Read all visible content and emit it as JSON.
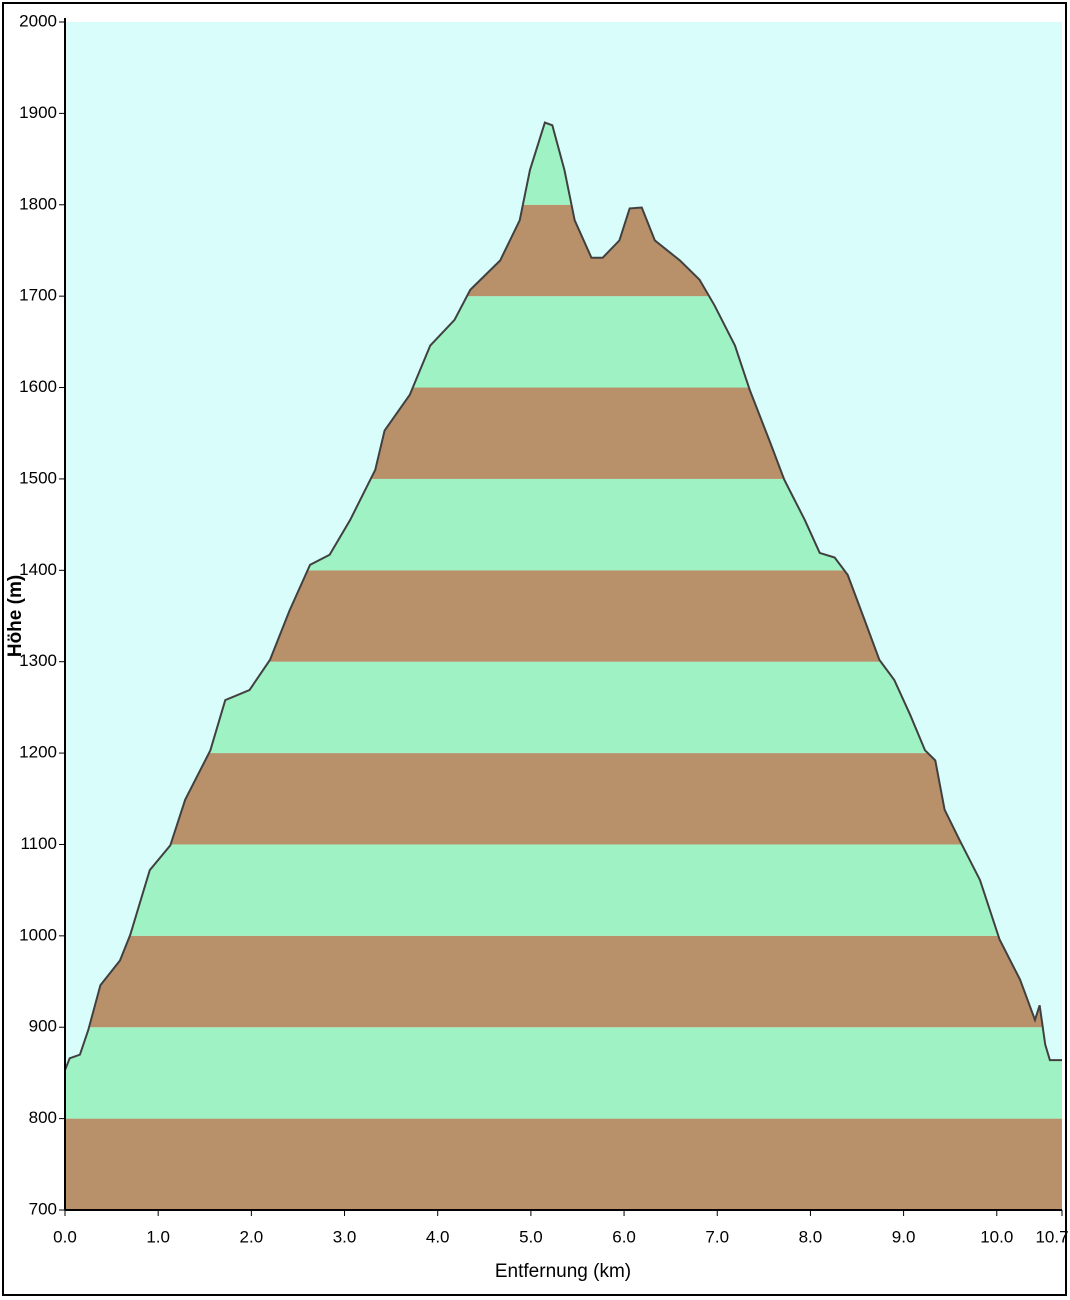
{
  "chart_data": {
    "type": "area",
    "xlabel": "Entfernung  (km)",
    "ylabel": "Höhe (m)",
    "x": [
      0,
      0.05,
      0.16,
      0.25,
      0.38,
      0.59,
      0.7,
      0.91,
      1.13,
      1.29,
      1.56,
      1.72,
      1.98,
      2.2,
      2.41,
      2.63,
      2.84,
      3.06,
      3.33,
      3.43,
      3.7,
      3.92,
      4.18,
      4.35,
      4.67,
      4.88,
      4.99,
      5.15,
      5.23,
      5.36,
      5.47,
      5.65,
      5.77,
      5.95,
      6.06,
      6.19,
      6.33,
      6.6,
      6.81,
      6.97,
      7.19,
      7.35,
      7.56,
      7.72,
      7.94,
      8.1,
      8.26,
      8.4,
      8.58,
      8.74,
      8.9,
      9.07,
      9.23,
      9.34,
      9.44,
      9.6,
      9.82,
      10.03,
      10.25,
      10.41,
      10.46,
      10.52,
      10.57,
      10.7
    ],
    "values": [
      853,
      866,
      870,
      897,
      946,
      973,
      1001,
      1072,
      1099,
      1149,
      1203,
      1258,
      1269,
      1302,
      1356,
      1406,
      1417,
      1455,
      1510,
      1553,
      1592,
      1646,
      1674,
      1707,
      1739,
      1783,
      1838,
      1890,
      1887,
      1838,
      1783,
      1742,
      1742,
      1761,
      1796,
      1797,
      1761,
      1739,
      1718,
      1690,
      1646,
      1597,
      1542,
      1499,
      1455,
      1419,
      1414,
      1395,
      1346,
      1302,
      1280,
      1242,
      1203,
      1192,
      1138,
      1105,
      1061,
      996,
      952,
      908,
      924,
      881,
      864,
      864
    ],
    "line_color": "#404040",
    "band_colors": [
      "#b8916a",
      "#9ff2c3"
    ],
    "background": "#d8fdfb",
    "xlim": [
      0,
      10.7
    ],
    "ylim": [
      700,
      2000
    ],
    "xticks": [
      {
        "value": 0,
        "label": "0.0"
      },
      {
        "value": 1,
        "label": "1.0"
      },
      {
        "value": 2,
        "label": "2.0"
      },
      {
        "value": 3,
        "label": "3.0"
      },
      {
        "value": 4,
        "label": "4.0"
      },
      {
        "value": 5,
        "label": "5.0"
      },
      {
        "value": 6,
        "label": "6.0"
      },
      {
        "value": 7,
        "label": "7.0"
      },
      {
        "value": 8,
        "label": "8.0"
      },
      {
        "value": 9,
        "label": "9.0"
      },
      {
        "value": 10,
        "label": "10.0"
      },
      10.7
    ],
    "yticks": [
      700,
      800,
      900,
      1000,
      1100,
      1200,
      1300,
      1400,
      1500,
      1600,
      1700,
      1800,
      1900,
      2000
    ]
  }
}
